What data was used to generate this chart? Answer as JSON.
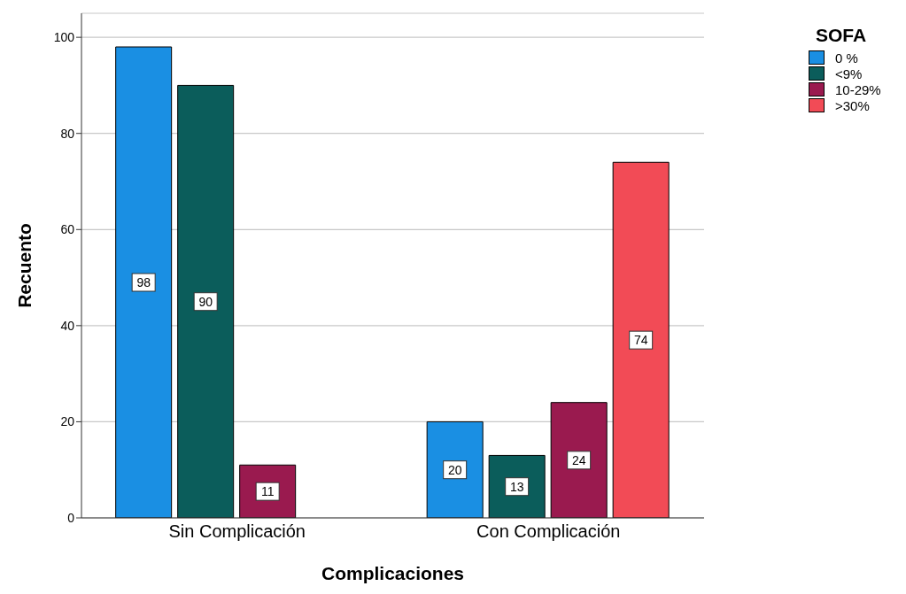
{
  "chart_data": {
    "type": "bar",
    "xlabel": "Complicaciones",
    "ylabel": "Recuento",
    "legend_title": "SOFA",
    "categories": [
      "Sin Complicación",
      "Con Complicación"
    ],
    "series": [
      {
        "name": "0 %",
        "color": "#1a8fe3",
        "values": [
          98,
          20
        ]
      },
      {
        "name": "<9%",
        "color": "#0b5d5b",
        "values": [
          90,
          13
        ]
      },
      {
        "name": "10-29%",
        "color": "#9a1a4f",
        "values": [
          11,
          24
        ]
      },
      {
        "name": ">30%",
        "color": "#f24b56",
        "values": [
          null,
          74
        ]
      }
    ],
    "ylim": [
      0,
      105
    ],
    "yticks": [
      0,
      20,
      40,
      60,
      80,
      100
    ],
    "grid": "y",
    "legend": "top right",
    "data_labels": true
  }
}
